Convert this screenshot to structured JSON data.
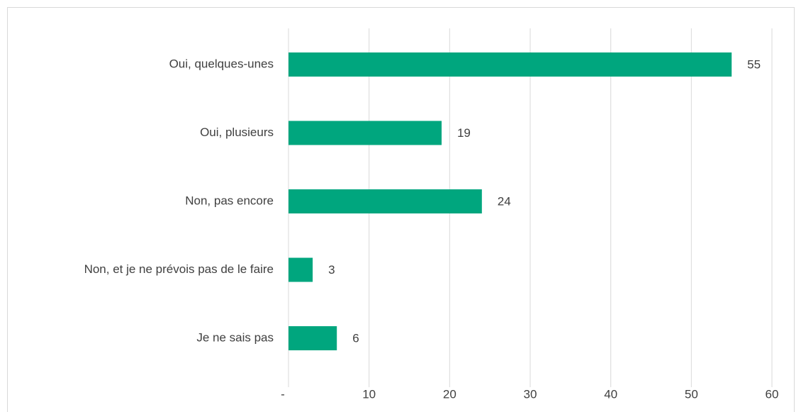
{
  "chart_data": {
    "type": "bar",
    "orientation": "horizontal",
    "categories": [
      "Oui, quelques-unes",
      "Oui, plusieurs",
      "Non, pas encore",
      "Non, et je ne prévois pas de le faire",
      "Je ne sais pas"
    ],
    "values": [
      55,
      19,
      24,
      3,
      6
    ],
    "color": "#00a67e",
    "xlim": [
      0,
      60
    ],
    "xticks": [
      {
        "value": 0,
        "label": "-"
      },
      10,
      20,
      30,
      40,
      50,
      60
    ],
    "grid": true
  }
}
